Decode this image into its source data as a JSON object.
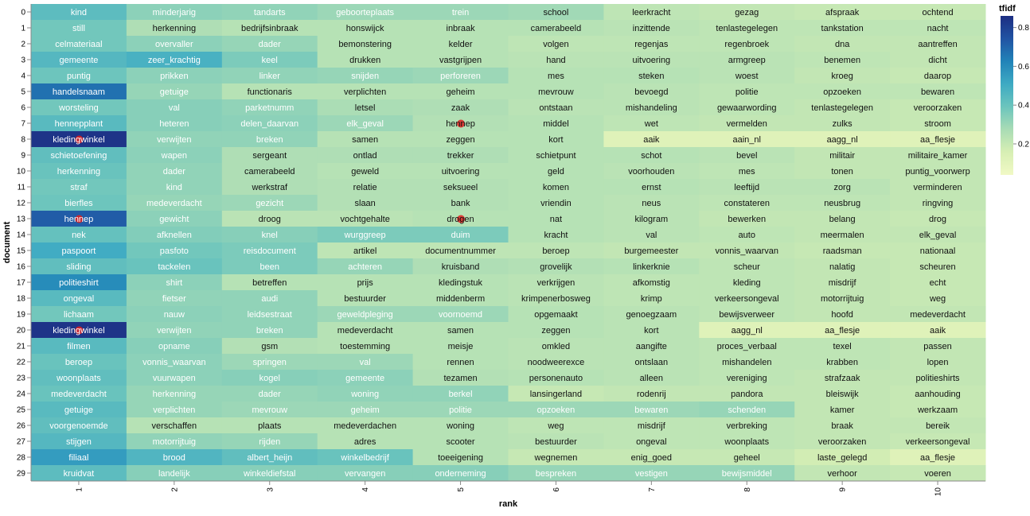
{
  "chart_data": {
    "type": "heatmap",
    "xlabel": "rank",
    "ylabel": "document",
    "x_categories": [
      "1",
      "2",
      "3",
      "4",
      "5",
      "6",
      "7",
      "8",
      "9",
      "10"
    ],
    "y_categories": [
      "0",
      "1",
      "2",
      "3",
      "4",
      "5",
      "6",
      "7",
      "8",
      "9",
      "10",
      "11",
      "12",
      "13",
      "14",
      "15",
      "16",
      "17",
      "18",
      "19",
      "20",
      "21",
      "22",
      "23",
      "24",
      "25",
      "26",
      "27",
      "28",
      "29"
    ],
    "legend": {
      "title": "tfidf",
      "ticks": [
        "0.2",
        "0.4",
        "0.6",
        "0.8"
      ],
      "tick_values": [
        0.2,
        0.4,
        0.6,
        0.8
      ],
      "domain": [
        0.04,
        0.86
      ],
      "placement": "right"
    },
    "color_scheme": [
      "#f1f9c5",
      "#d7efb4",
      "#a9dcb5",
      "#6cc5bd",
      "#3eaac3",
      "#2183b8",
      "#2153a3",
      "#1d2e82"
    ],
    "rows": [
      {
        "doc": "0",
        "terms": [
          "kind",
          "minderjarig",
          "tandarts",
          "geboorteplaats",
          "trein",
          "school",
          "leerkracht",
          "gezag",
          "afspraak",
          "ochtend"
        ],
        "values": [
          0.43,
          0.33,
          0.32,
          0.3,
          0.3,
          0.29,
          0.22,
          0.21,
          0.2,
          0.2
        ]
      },
      {
        "doc": "1",
        "terms": [
          "still",
          "herkenning",
          "bedrijfsinbraak",
          "honswijck",
          "inbraak",
          "camerabeeld",
          "inzittende",
          "tenlastegelegen",
          "tankstation",
          "nacht"
        ],
        "values": [
          0.38,
          0.26,
          0.24,
          0.24,
          0.24,
          0.24,
          0.23,
          0.22,
          0.22,
          0.22
        ]
      },
      {
        "doc": "2",
        "terms": [
          "celmateriaal",
          "overvaller",
          "dader",
          "bemonstering",
          "kelder",
          "volgen",
          "regenjas",
          "regenbroek",
          "dna",
          "aantreffen"
        ],
        "values": [
          0.38,
          0.33,
          0.31,
          0.24,
          0.24,
          0.22,
          0.22,
          0.22,
          0.21,
          0.21
        ]
      },
      {
        "doc": "3",
        "terms": [
          "gemeente",
          "zeer_krachtig",
          "keel",
          "drukken",
          "vastgrijpen",
          "hand",
          "uitvoering",
          "armgreep",
          "benemen",
          "dicht"
        ],
        "values": [
          0.45,
          0.48,
          0.36,
          0.24,
          0.24,
          0.23,
          0.23,
          0.23,
          0.22,
          0.21
        ]
      },
      {
        "doc": "4",
        "terms": [
          "puntig",
          "prikken",
          "linker",
          "snijden",
          "perforeren",
          "mes",
          "steken",
          "woest",
          "kroeg",
          "daarop"
        ],
        "values": [
          0.39,
          0.33,
          0.32,
          0.31,
          0.3,
          0.24,
          0.24,
          0.23,
          0.21,
          0.2
        ]
      },
      {
        "doc": "5",
        "terms": [
          "handelsnaam",
          "getuige",
          "functionaris",
          "verplichten",
          "geheim",
          "mevrouw",
          "bevoegd",
          "politie",
          "opzoeken",
          "bewaren"
        ],
        "values": [
          0.67,
          0.31,
          0.24,
          0.24,
          0.24,
          0.24,
          0.23,
          0.22,
          0.22,
          0.22
        ]
      },
      {
        "doc": "6",
        "terms": [
          "worsteling",
          "val",
          "parketnumm",
          "letsel",
          "zaak",
          "ontstaan",
          "mishandeling",
          "gewaarwording",
          "tenlastegelegen",
          "veroorzaken"
        ],
        "values": [
          0.38,
          0.34,
          0.32,
          0.27,
          0.26,
          0.23,
          0.23,
          0.22,
          0.21,
          0.2
        ]
      },
      {
        "doc": "7",
        "terms": [
          "hennepplant",
          "heteren",
          "delen_daarvan",
          "elk_geval",
          "hennep",
          "middel",
          "wet",
          "vermelden",
          "zulks",
          "stroom"
        ],
        "values": [
          0.44,
          0.34,
          0.33,
          0.3,
          0.25,
          0.24,
          0.22,
          0.21,
          0.21,
          0.2
        ]
      },
      {
        "doc": "8",
        "terms": [
          "kledingwinkel",
          "verwijten",
          "breken",
          "samen",
          "zeggen",
          "kort",
          "aaik",
          "aain_nl",
          "aagg_nl",
          "aa_flesje"
        ],
        "values": [
          0.84,
          0.32,
          0.32,
          0.24,
          0.24,
          0.24,
          0.12,
          0.12,
          0.12,
          0.12
        ]
      },
      {
        "doc": "9",
        "terms": [
          "schietoefening",
          "wapen",
          "sergeant",
          "ontlad",
          "trekker",
          "schietpunt",
          "schot",
          "bevel",
          "militair",
          "militaire_kamer"
        ],
        "values": [
          0.42,
          0.33,
          0.26,
          0.26,
          0.26,
          0.24,
          0.24,
          0.23,
          0.21,
          0.21
        ]
      },
      {
        "doc": "10",
        "terms": [
          "herkenning",
          "dader",
          "camerabeeld",
          "geweld",
          "uitvoering",
          "geld",
          "voorhouden",
          "mes",
          "tonen",
          "puntig_voorwerp"
        ],
        "values": [
          0.4,
          0.32,
          0.26,
          0.24,
          0.24,
          0.24,
          0.23,
          0.22,
          0.21,
          0.21
        ]
      },
      {
        "doc": "11",
        "terms": [
          "straf",
          "kind",
          "werkstraf",
          "relatie",
          "seksueel",
          "komen",
          "ernst",
          "leeftijd",
          "zorg",
          "verminderen"
        ],
        "values": [
          0.38,
          0.32,
          0.26,
          0.25,
          0.25,
          0.24,
          0.24,
          0.23,
          0.23,
          0.21
        ]
      },
      {
        "doc": "12",
        "terms": [
          "bierfles",
          "medeverdacht",
          "gezicht",
          "slaan",
          "bank",
          "vriendin",
          "neus",
          "constateren",
          "neusbrug",
          "ringving"
        ],
        "values": [
          0.39,
          0.31,
          0.3,
          0.25,
          0.25,
          0.24,
          0.23,
          0.22,
          0.22,
          0.21
        ]
      },
      {
        "doc": "13",
        "terms": [
          "hennep",
          "gewicht",
          "droog",
          "vochtgehalte",
          "drogen",
          "nat",
          "kilogram",
          "bewerken",
          "belang",
          "drog"
        ],
        "values": [
          0.72,
          0.33,
          0.23,
          0.23,
          0.24,
          0.24,
          0.23,
          0.21,
          0.21,
          0.2
        ]
      },
      {
        "doc": "14",
        "terms": [
          "nek",
          "afknellen",
          "knel",
          "wurggreep",
          "duim",
          "kracht",
          "val",
          "auto",
          "meermalen",
          "elk_geval"
        ],
        "values": [
          0.41,
          0.35,
          0.34,
          0.36,
          0.36,
          0.24,
          0.23,
          0.22,
          0.21,
          0.21
        ]
      },
      {
        "doc": "15",
        "terms": [
          "paspoort",
          "pasfoto",
          "reisdocument",
          "artikel",
          "documentnummer",
          "beroep",
          "burgemeester",
          "vonnis_waarvan",
          "raadsman",
          "nationaal"
        ],
        "values": [
          0.5,
          0.38,
          0.36,
          0.22,
          0.22,
          0.22,
          0.21,
          0.21,
          0.2,
          0.2
        ]
      },
      {
        "doc": "16",
        "terms": [
          "sliding",
          "tackelen",
          "been",
          "achteren",
          "kruisband",
          "grovelijk",
          "linkerknie",
          "scheur",
          "nalatig",
          "scheuren"
        ],
        "values": [
          0.42,
          0.4,
          0.36,
          0.31,
          0.26,
          0.25,
          0.24,
          0.22,
          0.21,
          0.2
        ]
      },
      {
        "doc": "17",
        "terms": [
          "politieshirt",
          "shirt",
          "betreffen",
          "prijs",
          "kledingstuk",
          "verkrijgen",
          "afkomstig",
          "kleding",
          "misdrijf",
          "echt"
        ],
        "values": [
          0.6,
          0.33,
          0.24,
          0.24,
          0.24,
          0.23,
          0.22,
          0.22,
          0.21,
          0.2
        ]
      },
      {
        "doc": "18",
        "terms": [
          "ongeval",
          "fietser",
          "audi",
          "bestuurder",
          "middenberm",
          "krimpenerbosweg",
          "krimp",
          "verkeersongeval",
          "motorrijtuig",
          "weg"
        ],
        "values": [
          0.44,
          0.32,
          0.32,
          0.24,
          0.24,
          0.23,
          0.22,
          0.22,
          0.21,
          0.2
        ]
      },
      {
        "doc": "19",
        "terms": [
          "lichaam",
          "nauw",
          "leidsestraat",
          "geweldpleging",
          "voornoemd",
          "opgemaakt",
          "genoegzaam",
          "bewijsverweer",
          "hoofd",
          "medeverdacht"
        ],
        "values": [
          0.38,
          0.33,
          0.32,
          0.3,
          0.3,
          0.24,
          0.23,
          0.22,
          0.21,
          0.21
        ]
      },
      {
        "doc": "20",
        "terms": [
          "kledingwinkel",
          "verwijten",
          "breken",
          "medeverdacht",
          "samen",
          "zeggen",
          "kort",
          "aagg_nl",
          "aa_flesje",
          "aaik"
        ],
        "values": [
          0.84,
          0.32,
          0.32,
          0.24,
          0.24,
          0.24,
          0.23,
          0.12,
          0.12,
          0.12
        ]
      },
      {
        "doc": "21",
        "terms": [
          "filmen",
          "opname",
          "gsm",
          "toestemming",
          "meisje",
          "omkled",
          "aangifte",
          "proces_verbaal",
          "texel",
          "passen"
        ],
        "values": [
          0.44,
          0.34,
          0.25,
          0.24,
          0.24,
          0.23,
          0.23,
          0.22,
          0.22,
          0.21
        ]
      },
      {
        "doc": "22",
        "terms": [
          "beroep",
          "vonnis_waarvan",
          "springen",
          "val",
          "rennen",
          "noodweerexce",
          "ontslaan",
          "mishandelen",
          "krabben",
          "lopen"
        ],
        "values": [
          0.4,
          0.33,
          0.3,
          0.3,
          0.24,
          0.23,
          0.23,
          0.22,
          0.22,
          0.21
        ]
      },
      {
        "doc": "23",
        "terms": [
          "woonplaats",
          "vuurwapen",
          "kogel",
          "gemeente",
          "tezamen",
          "personenauto",
          "alleen",
          "vereniging",
          "strafzaak",
          "politieshirts"
        ],
        "values": [
          0.42,
          0.33,
          0.34,
          0.33,
          0.25,
          0.24,
          0.23,
          0.22,
          0.21,
          0.21
        ]
      },
      {
        "doc": "24",
        "terms": [
          "medeverdacht",
          "herkenning",
          "dader",
          "woning",
          "berkel",
          "lansingerland",
          "rodenrij",
          "pandora",
          "bleiswijk",
          "aanhouding"
        ],
        "values": [
          0.4,
          0.31,
          0.31,
          0.32,
          0.32,
          0.2,
          0.21,
          0.21,
          0.21,
          0.2
        ]
      },
      {
        "doc": "25",
        "terms": [
          "getuige",
          "verplichten",
          "mevrouw",
          "geheim",
          "politie",
          "opzoeken",
          "bewaren",
          "schenden",
          "kamer",
          "werkzaam"
        ],
        "values": [
          0.44,
          0.31,
          0.3,
          0.3,
          0.3,
          0.3,
          0.3,
          0.31,
          0.21,
          0.2
        ]
      },
      {
        "doc": "26",
        "terms": [
          "voorgenoemde",
          "verschaffen",
          "plaats",
          "medeverdachen",
          "woning",
          "weg",
          "misdrijf",
          "verbreking",
          "braak",
          "bereik"
        ],
        "values": [
          0.42,
          0.24,
          0.24,
          0.24,
          0.24,
          0.22,
          0.22,
          0.22,
          0.21,
          0.21
        ]
      },
      {
        "doc": "27",
        "terms": [
          "stijgen",
          "motorrijtuig",
          "rijden",
          "adres",
          "scooter",
          "bestuurder",
          "ongeval",
          "woonplaats",
          "veroorzaken",
          "verkeersongeval"
        ],
        "values": [
          0.45,
          0.32,
          0.31,
          0.24,
          0.24,
          0.23,
          0.22,
          0.22,
          0.21,
          0.2
        ]
      },
      {
        "doc": "28",
        "terms": [
          "filiaal",
          "brood",
          "albert_heijn",
          "winkelbedrijf",
          "toeeigening",
          "wegnemen",
          "enig_goed",
          "geheel",
          "laste_gelegd",
          "aa_flesje"
        ],
        "values": [
          0.55,
          0.46,
          0.42,
          0.4,
          0.24,
          0.2,
          0.2,
          0.2,
          0.17,
          0.12
        ]
      },
      {
        "doc": "29",
        "terms": [
          "kruidvat",
          "landelijk",
          "winkeldiefstal",
          "vervangen",
          "onderneming",
          "bespreken",
          "vestigen",
          "bewijsmiddel",
          "verhoor",
          "voeren"
        ],
        "values": [
          0.43,
          0.34,
          0.34,
          0.34,
          0.34,
          0.31,
          0.31,
          0.31,
          0.21,
          0.2
        ]
      }
    ],
    "markers": [
      {
        "doc": "7",
        "rank": "5",
        "color": "#e02020"
      },
      {
        "doc": "13",
        "rank": "5",
        "color": "#e02020"
      },
      {
        "doc": "13",
        "rank": "1",
        "color": "#e02020"
      },
      {
        "doc": "8",
        "rank": "1",
        "color": "#e02020"
      },
      {
        "doc": "20",
        "rank": "1",
        "color": "#e02020"
      }
    ]
  }
}
